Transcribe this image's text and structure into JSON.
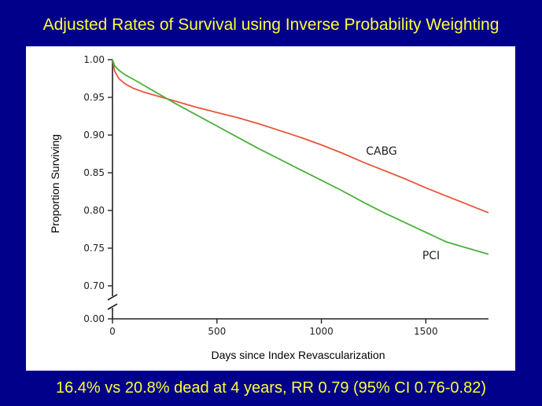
{
  "slide": {
    "title": "Adjusted Rates of Survival using Inverse Probability Weighting",
    "footer": "16.4% vs 20.8% dead at 4 years, RR 0.79 (95% CI 0.76-0.82)"
  },
  "colors": {
    "background": "#00008b",
    "title_text": "#ffff33",
    "panel": "#ffffff",
    "axis": "#222222",
    "cabg": "#e8553a",
    "pci": "#4caf3c"
  },
  "chart_data": {
    "type": "line",
    "title": "",
    "xlabel": "Days since Index Revascularization",
    "ylabel": "Proportion Surviving",
    "xlim": [
      0,
      1800
    ],
    "ylim": [
      0.7,
      1.0
    ],
    "y_axis_break": true,
    "x_ticks": [
      0,
      500,
      1000,
      1500
    ],
    "x_tick_labels": [
      "0",
      "500",
      "1000",
      "1500"
    ],
    "y_ticks": [
      0.7,
      0.75,
      0.8,
      0.85,
      0.9,
      0.95,
      1.0
    ],
    "y_tick_labels": [
      "0.70",
      "0.75",
      "0.80",
      "0.85",
      "0.90",
      "0.95",
      "1.00"
    ],
    "y_zero_label": "0.00",
    "series": [
      {
        "name": "CABG",
        "label": "CABG",
        "color": "#e8553a",
        "x": [
          0,
          10,
          30,
          60,
          100,
          150,
          200,
          300,
          400,
          500,
          600,
          700,
          800,
          900,
          1000,
          1100,
          1200,
          1300,
          1400,
          1500,
          1600,
          1700,
          1800
        ],
        "y": [
          1.0,
          0.985,
          0.975,
          0.968,
          0.962,
          0.957,
          0.953,
          0.945,
          0.937,
          0.93,
          0.923,
          0.915,
          0.906,
          0.897,
          0.887,
          0.876,
          0.864,
          0.853,
          0.842,
          0.83,
          0.819,
          0.808,
          0.797
        ]
      },
      {
        "name": "PCI",
        "label": "PCI",
        "color": "#4caf3c",
        "x": [
          0,
          10,
          30,
          60,
          100,
          150,
          200,
          300,
          400,
          500,
          600,
          700,
          800,
          900,
          1000,
          1100,
          1200,
          1300,
          1400,
          1500,
          1600,
          1700,
          1800
        ],
        "y": [
          1.0,
          0.992,
          0.986,
          0.98,
          0.974,
          0.966,
          0.958,
          0.942,
          0.927,
          0.912,
          0.897,
          0.882,
          0.868,
          0.854,
          0.84,
          0.826,
          0.811,
          0.797,
          0.784,
          0.771,
          0.758,
          0.75,
          0.742
        ]
      }
    ]
  }
}
